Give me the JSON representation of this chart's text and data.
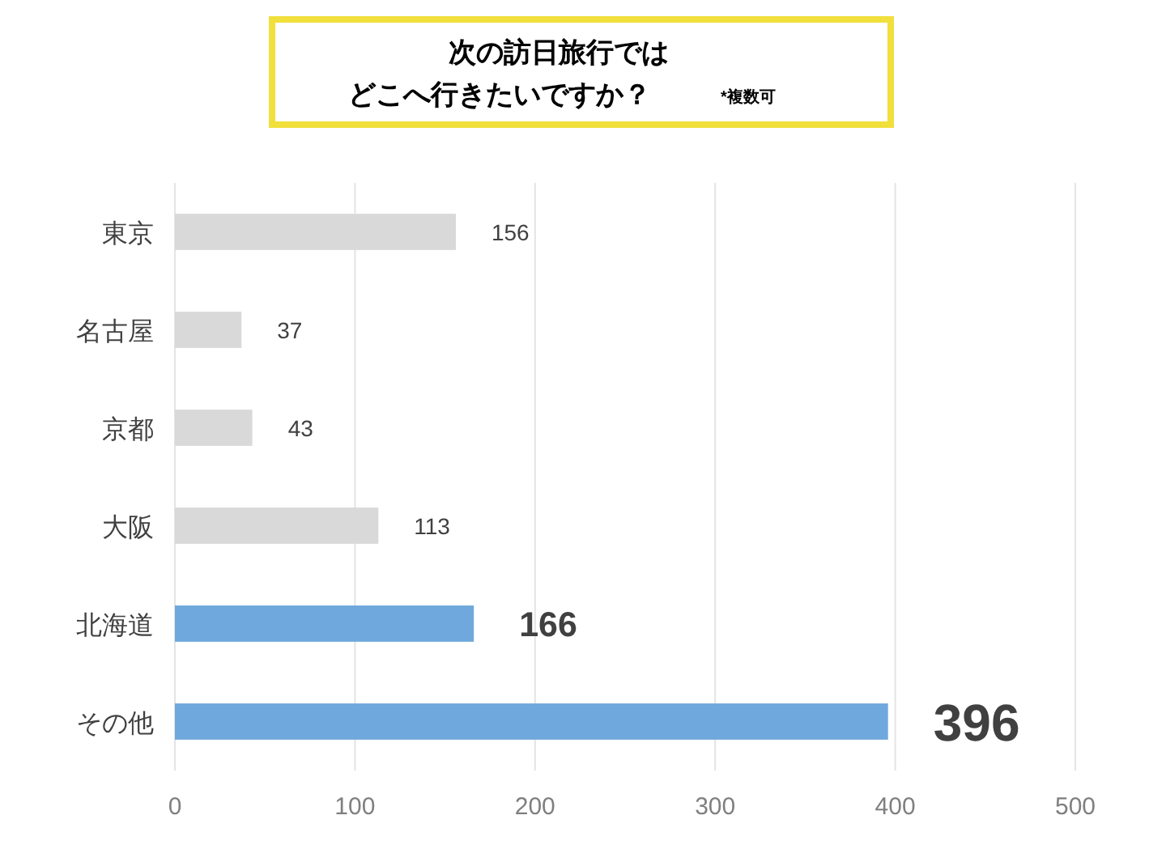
{
  "chart_data": {
    "type": "bar",
    "orientation": "horizontal",
    "title": "次の訪日旅行では",
    "subtitle": "どこへ行きたいですか？",
    "annotations": [
      "*複数可"
    ],
    "categories": [
      "東京",
      "名古屋",
      "京都",
      "大阪",
      "北海道",
      "その他"
    ],
    "values": [
      156,
      37,
      43,
      113,
      166,
      396
    ],
    "colors": [
      "#d9d9d9",
      "#d9d9d9",
      "#d9d9d9",
      "#d9d9d9",
      "#6fa8dc",
      "#6fa8dc"
    ],
    "xlim": [
      0,
      500
    ],
    "xticks": [
      0,
      100,
      200,
      300,
      400,
      500
    ],
    "grid": "x",
    "data_labels": true
  }
}
